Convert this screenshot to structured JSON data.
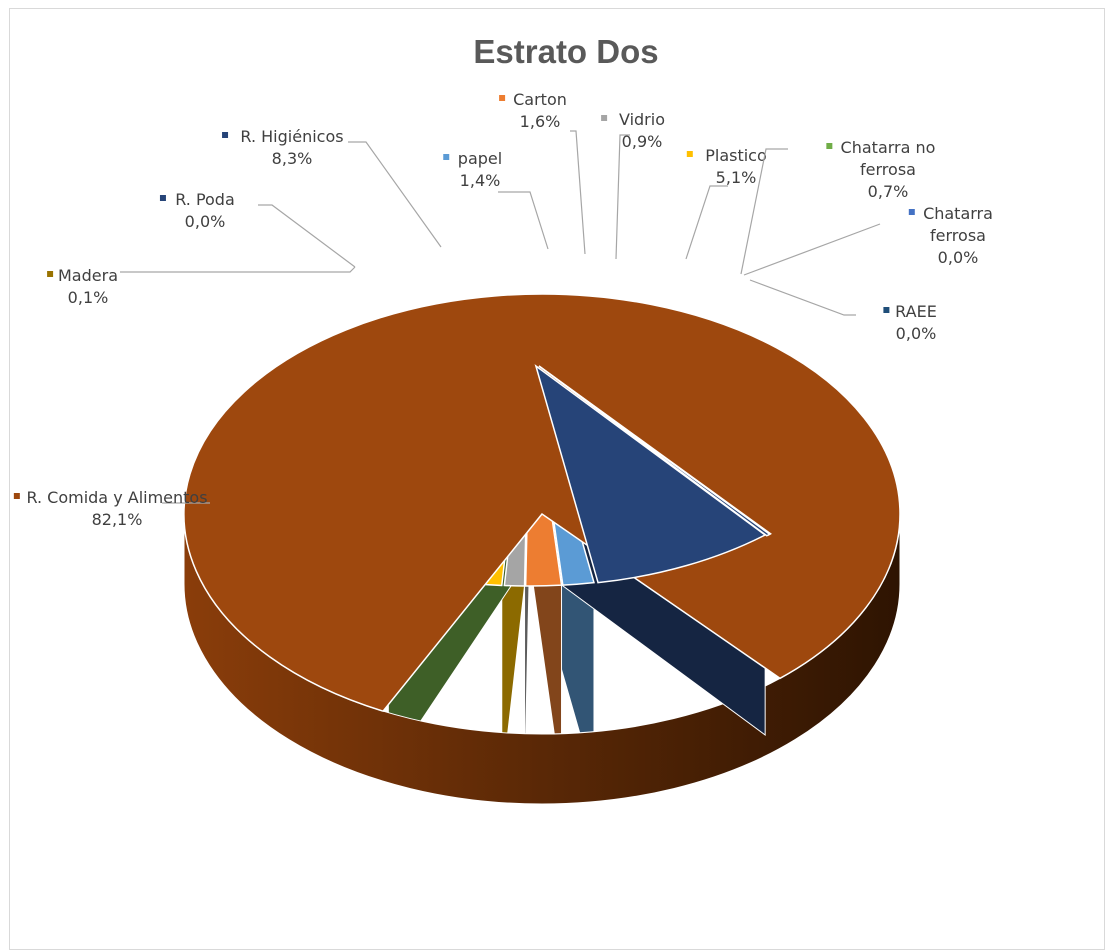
{
  "chart_data": {
    "type": "pie",
    "title": "Estrato Dos",
    "value_unit": "%",
    "slices": [
      {
        "name": "papel",
        "value": 1.4,
        "value_label": "1,4%",
        "color": "#5b9bd5",
        "label_lines": [
          "papel",
          "1,4%"
        ]
      },
      {
        "name": "Carton",
        "value": 1.6,
        "value_label": "1,6%",
        "color": "#ed7d31",
        "label_lines": [
          "Carton",
          "1,6%"
        ]
      },
      {
        "name": "Vidrio",
        "value": 0.9,
        "value_label": "0,9%",
        "color": "#a5a5a5",
        "label_lines": [
          "Vidrio",
          "0,9%"
        ]
      },
      {
        "name": "Plastico",
        "value": 5.1,
        "value_label": "5,1%",
        "color": "#ffc000",
        "label_lines": [
          "Plastico",
          "5,1%"
        ]
      },
      {
        "name": "Chatarra no ferrosa",
        "value": 0.7,
        "value_label": "0,7%",
        "color": "#70ad47",
        "label_lines": [
          "Chatarra no",
          "ferrosa",
          "0,7%"
        ]
      },
      {
        "name": "Chatarra ferrosa",
        "value": 0.0,
        "value_label": "0,0%",
        "color": "#4472c4",
        "label_lines": [
          "Chatarra",
          "ferrosa",
          "0,0%"
        ]
      },
      {
        "name": "RAEE",
        "value": 0.0,
        "value_label": "0,0%",
        "color": "#1f4e79",
        "label_lines": [
          "RAEE",
          "0,0%"
        ]
      },
      {
        "name": "R. Comida y Alimentos",
        "value": 82.1,
        "value_label": "82,1%",
        "color": "#9e480e",
        "label_lines": [
          "R. Comida y Alimentos",
          "82,1%"
        ]
      },
      {
        "name": "Madera",
        "value": 0.1,
        "value_label": "0,1%",
        "color": "#997300",
        "label_lines": [
          "Madera",
          "0,1%"
        ]
      },
      {
        "name": "R. Poda",
        "value": 0.0,
        "value_label": "0,0%",
        "color": "#264478",
        "label_lines": [
          "R. Poda",
          "0,0%"
        ]
      },
      {
        "name": "R. Higiénicos",
        "value": 8.3,
        "value_label": "8,3%",
        "color": "#264478",
        "label_lines": [
          "R. Higiénicos",
          "8,3%"
        ]
      }
    ],
    "legend": "none",
    "style": "3d-exploded-pie"
  }
}
